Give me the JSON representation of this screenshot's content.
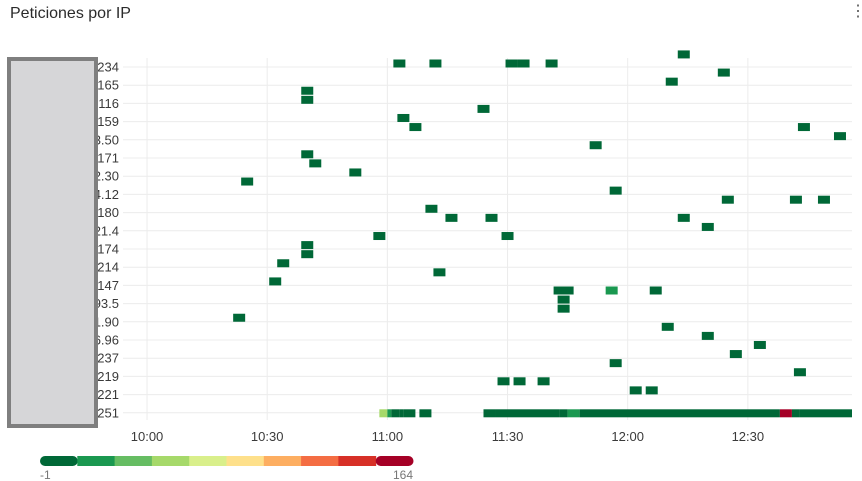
{
  "panel": {
    "title": "Peticiones por IP",
    "menu_icon": "kebab-menu-icon"
  },
  "chart_data": {
    "type": "heatmap",
    "title": "Peticiones por IP",
    "x_ticks": [
      "10:00",
      "10:30",
      "11:00",
      "11:30",
      "12:00",
      "12:30"
    ],
    "x_tick_minutes": [
      0,
      30,
      60,
      90,
      120,
      150
    ],
    "x_range_minutes": [
      -6,
      176
    ],
    "bucket_minutes": 2.7,
    "rows": [
      ".234",
      ".165",
      "7.116",
      "3.159",
      "3.50",
      "4.171",
      "2.30",
      "4.12",
      "7.180",
      "21.4",
      ".174",
      ".214",
      "0.147",
      "93.5",
      "1.90",
      "6.96",
      ".237",
      "7.219",
      ".221",
      ".251"
    ],
    "color_scale": {
      "min": -1,
      "max": 164,
      "colors": [
        "#006837",
        "#1a9850",
        "#66bd63",
        "#a6d96a",
        "#d9ef8b",
        "#fee08b",
        "#fdae61",
        "#f46d43",
        "#d73027",
        "#a50026"
      ]
    },
    "cells": [
      {
        "t": 134,
        "row": -1,
        "v": 1
      },
      {
        "t": 63,
        "row": 0,
        "v": 1
      },
      {
        "t": 72,
        "row": 0,
        "v": 1
      },
      {
        "t": 91,
        "row": 0,
        "v": 1
      },
      {
        "t": 94,
        "row": 0,
        "v": 1
      },
      {
        "t": 101,
        "row": 0,
        "v": 1
      },
      {
        "t": 144,
        "row": 1,
        "v": 1
      },
      {
        "t": 131,
        "row": 2,
        "v": 1
      },
      {
        "t": 40,
        "row": 3,
        "v": 1
      },
      {
        "t": 40,
        "row": 4,
        "v": 1
      },
      {
        "t": 84,
        "row": 5,
        "v": 1
      },
      {
        "t": 64,
        "row": 6,
        "v": 1
      },
      {
        "t": 67,
        "row": 7,
        "v": 1
      },
      {
        "t": 164,
        "row": 7,
        "v": 1
      },
      {
        "t": 173,
        "row": 8,
        "v": 1
      },
      {
        "t": 112,
        "row": 9,
        "v": 1
      },
      {
        "t": 40,
        "row": 10,
        "v": 1
      },
      {
        "t": 42,
        "row": 11,
        "v": 1
      },
      {
        "t": 52,
        "row": 12,
        "v": 1
      },
      {
        "t": 25,
        "row": 13,
        "v": 1
      },
      {
        "t": 117,
        "row": 14,
        "v": 1
      },
      {
        "t": 145,
        "row": 15,
        "v": 1
      },
      {
        "t": 162,
        "row": 15,
        "v": 1
      },
      {
        "t": 169,
        "row": 15,
        "v": 1
      },
      {
        "t": 71,
        "row": 16,
        "v": 1
      },
      {
        "t": 76,
        "row": 17,
        "v": 1
      },
      {
        "t": 86,
        "row": 17,
        "v": 1
      },
      {
        "t": 134,
        "row": 17,
        "v": 1
      },
      {
        "t": 140,
        "row": 18,
        "v": 1
      },
      {
        "t": 58,
        "row": 19,
        "v": 1
      },
      {
        "t": 90,
        "row": 19,
        "v": 1
      },
      {
        "t": 40,
        "row": 20,
        "v": 1
      },
      {
        "t": 40,
        "row": 21,
        "v": 1
      },
      {
        "t": 34,
        "row": 22,
        "v": 1
      },
      {
        "t": 73,
        "row": 23,
        "v": 1
      },
      {
        "t": 32,
        "row": 24,
        "v": 1
      },
      {
        "t": 103,
        "row": 25,
        "v": 15
      },
      {
        "t": 105,
        "row": 25,
        "v": 1
      },
      {
        "t": 116,
        "row": 25,
        "v": 30
      },
      {
        "t": 127,
        "row": 25,
        "v": 1
      },
      {
        "t": 104,
        "row": 26,
        "v": 1
      },
      {
        "t": 104,
        "row": 27,
        "v": 1
      },
      {
        "t": 23,
        "row": 28,
        "v": 1
      },
      {
        "t": 130,
        "row": 29,
        "v": 1
      },
      {
        "t": 140,
        "row": 30,
        "v": 1
      },
      {
        "t": 153,
        "row": 31,
        "v": 1
      },
      {
        "t": 147,
        "row": 32,
        "v": 1
      },
      {
        "t": 117,
        "row": 33,
        "v": 1
      },
      {
        "t": 163,
        "row": 34,
        "v": 1
      },
      {
        "t": 89,
        "row": 35,
        "v": 1
      },
      {
        "t": 93,
        "row": 35,
        "v": 1
      },
      {
        "t": 99,
        "row": 35,
        "v": 1
      },
      {
        "t": 122,
        "row": 36,
        "v": 1
      },
      {
        "t": 126,
        "row": 36,
        "v": 1
      }
    ],
    "last_row_strip": [
      {
        "t0": 58,
        "t1": 60,
        "v": 55
      },
      {
        "t0": 60,
        "t1": 61,
        "v": 30
      },
      {
        "t0": 61,
        "t1": 63,
        "v": 1
      },
      {
        "t0": 63,
        "t1": 64,
        "v": 15
      },
      {
        "t0": 64,
        "t1": 67,
        "v": 1
      },
      {
        "t0": 68,
        "t1": 71,
        "v": 1
      },
      {
        "t0": 84,
        "t1": 87,
        "v": 15
      },
      {
        "t0": 87,
        "t1": 103,
        "v": 1
      },
      {
        "t0": 103,
        "t1": 105,
        "v": 15
      },
      {
        "t0": 105,
        "t1": 108,
        "v": 30
      },
      {
        "t0": 108,
        "t1": 158,
        "v": 1
      },
      {
        "t0": 158,
        "t1": 161,
        "v": 150
      },
      {
        "t0": 161,
        "t1": 163,
        "v": 15
      },
      {
        "t0": 163,
        "t1": 176,
        "v": 1
      }
    ]
  }
}
